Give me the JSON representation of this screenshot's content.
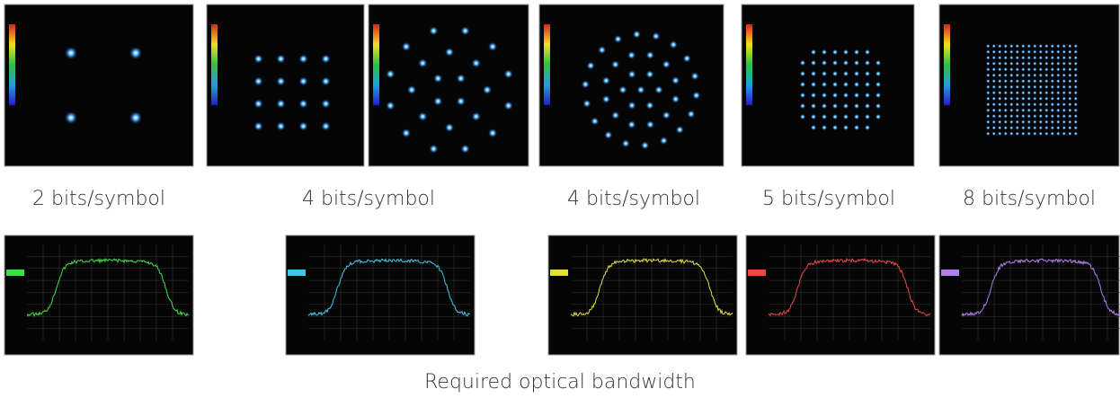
{
  "constellations": [
    {
      "label": "2 bits/symbol"
    },
    {
      "label": "4 bits/symbol"
    },
    {
      "label": "4 bits/symbol"
    },
    {
      "label": "5 bits/symbol"
    },
    {
      "label": "8 bits/symbol"
    }
  ],
  "caption": "Required optical bandwidth"
}
